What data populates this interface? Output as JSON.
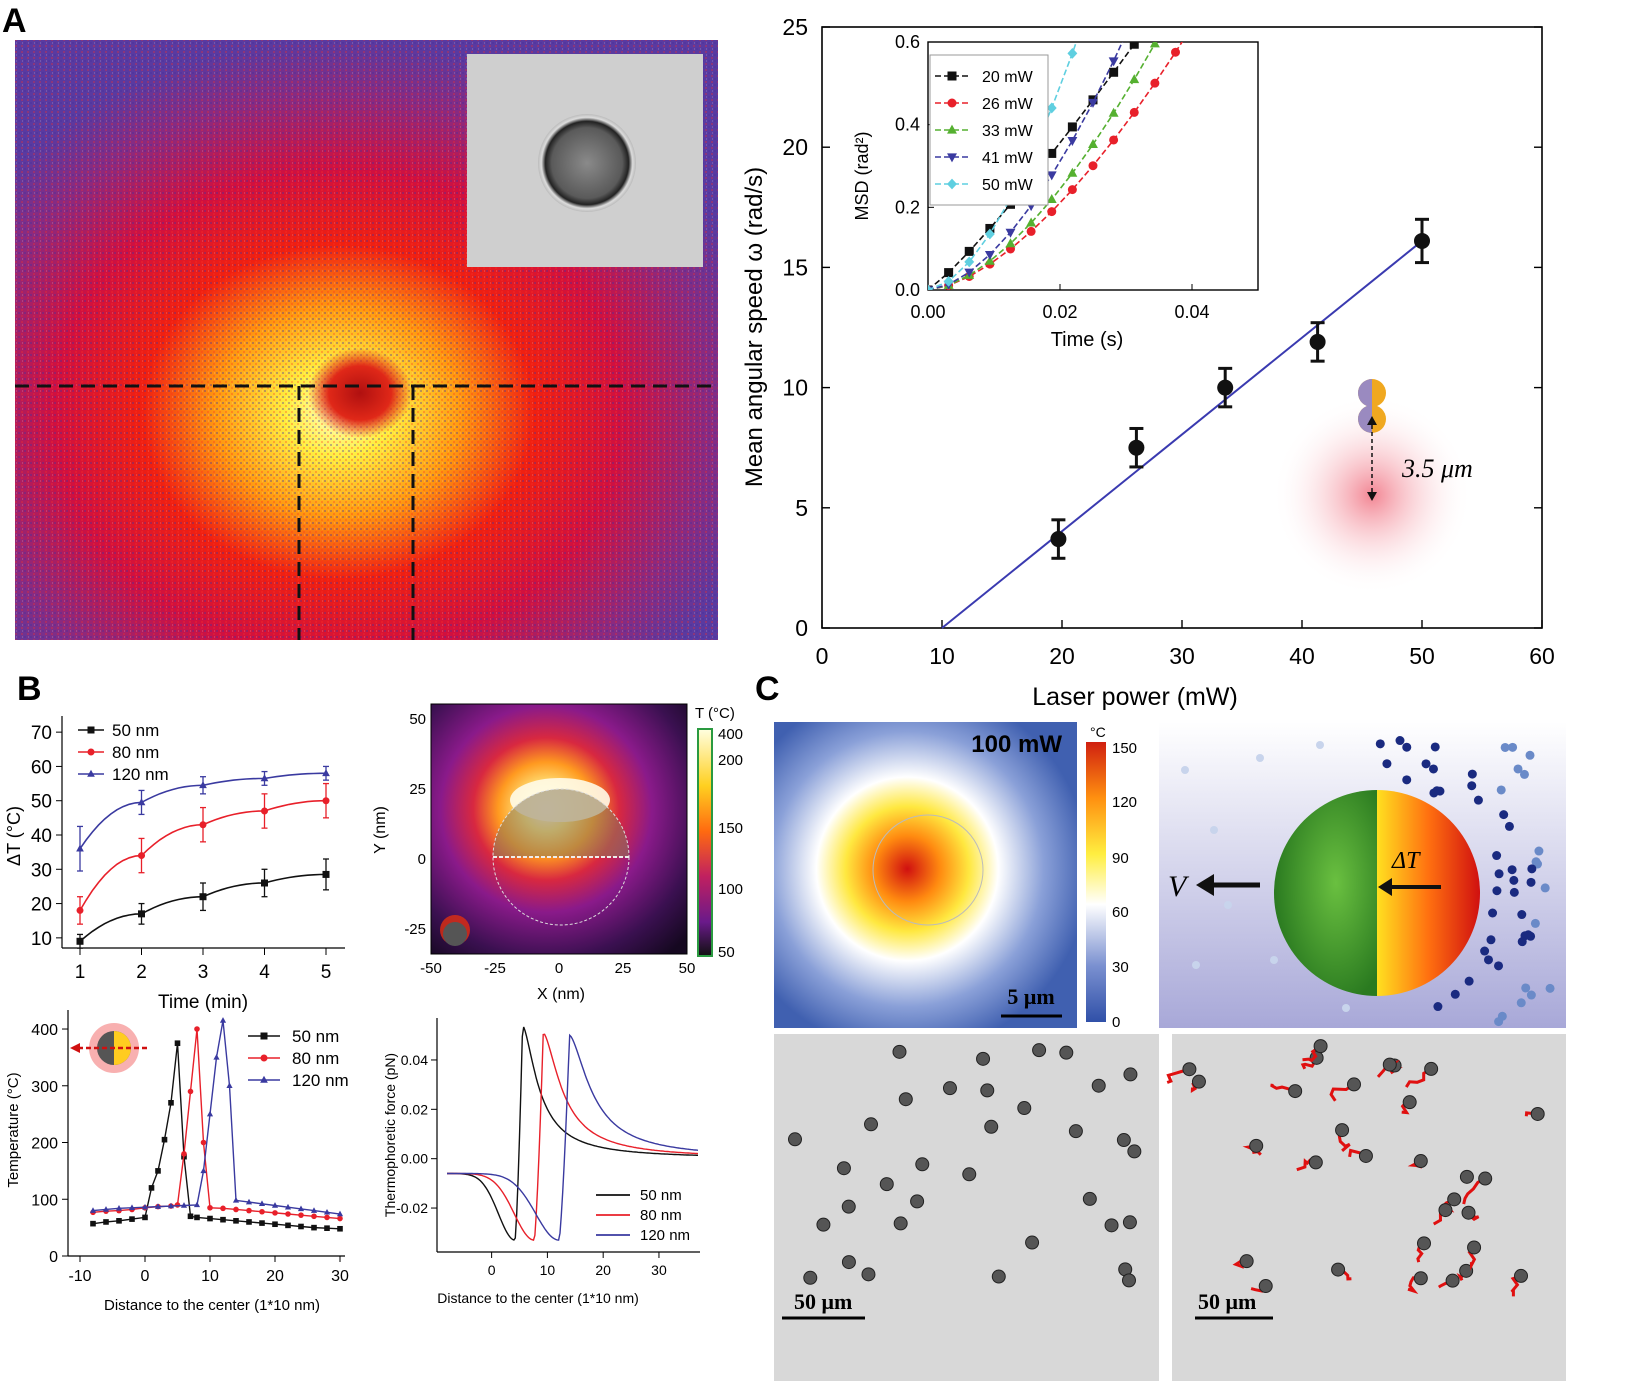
{
  "panel_labels": {
    "a": "A",
    "b": "B",
    "c": "C"
  },
  "colors": {
    "black": "#111111",
    "red": "#e8202a",
    "green": "#55b030",
    "blue": "#3a3aa0",
    "cyan": "#5fcfe0",
    "fit": "#3a3ab0"
  },
  "heat_map_a": {
    "description_tag": "thermal-image"
  },
  "chart_data": [
    {
      "id": "A-main",
      "type": "scatter",
      "xlabel": "Laser power (mW)",
      "ylabel": "Mean angular speed ω (rad/s)",
      "xlim": [
        0,
        60
      ],
      "ylim": [
        0,
        25
      ],
      "xticks": [
        0,
        10,
        20,
        30,
        40,
        50,
        60
      ],
      "yticks": [
        0,
        5,
        10,
        15,
        20,
        25
      ],
      "points": [
        {
          "x": 19.7,
          "y": 3.7,
          "err": 0.8
        },
        {
          "x": 26.2,
          "y": 7.5,
          "err": 0.8
        },
        {
          "x": 33.6,
          "y": 10.0,
          "err": 0.8
        },
        {
          "x": 41.3,
          "y": 11.9,
          "err": 0.8
        },
        {
          "x": 50.0,
          "y": 16.1,
          "err": 0.9
        }
      ],
      "fit": {
        "x": [
          10,
          50
        ],
        "y": [
          0,
          16.1
        ]
      },
      "annotation": "3.5 μm"
    },
    {
      "id": "A-inset",
      "type": "line",
      "xlabel": "Time (s)",
      "ylabel": "MSD (rad²)",
      "xlim": [
        0,
        0.05
      ],
      "ylim": [
        0,
        0.6
      ],
      "xticks": [
        "0.00",
        "0.02",
        "0.04"
      ],
      "yticks": [
        "0.0",
        "0.2",
        "0.4",
        "0.6"
      ],
      "series": [
        {
          "name": "20 mW",
          "a": 32,
          "b": 1.15
        },
        {
          "name": "26 mW",
          "a": 110,
          "b": 1.6
        },
        {
          "name": "33 mW",
          "a": 155,
          "b": 1.65
        },
        {
          "name": "41 mW",
          "a": 240,
          "b": 1.7
        },
        {
          "name": "50 mW",
          "a": 380,
          "b": 1.7
        }
      ]
    },
    {
      "id": "B-dT",
      "type": "line",
      "xlabel": "Time (min)",
      "ylabel": "ΔT (°C)",
      "xlim": [
        1,
        5
      ],
      "ylim": [
        5,
        75
      ],
      "xticks": [
        1,
        2,
        3,
        4,
        5
      ],
      "yticks": [
        10,
        20,
        30,
        40,
        50,
        60,
        70
      ],
      "x": [
        1,
        2,
        3,
        4,
        5
      ],
      "series": [
        {
          "name": "50 nm",
          "values": [
            9,
            17,
            22,
            26,
            28.5
          ],
          "err": [
            2,
            3,
            4,
            4,
            4.5
          ]
        },
        {
          "name": "80 nm",
          "values": [
            18,
            34,
            43,
            47,
            50
          ],
          "err": [
            4,
            5,
            5,
            5,
            5
          ]
        },
        {
          "name": "120 nm",
          "values": [
            36,
            49.5,
            54.5,
            56.5,
            58
          ],
          "err": [
            6.5,
            3.5,
            2.5,
            2,
            2
          ]
        }
      ]
    },
    {
      "id": "B-map",
      "type": "heatmap",
      "xlabel": "X (nm)",
      "ylabel": "Y (nm)",
      "xticks": [
        -50,
        -25,
        0,
        25,
        50
      ],
      "yticks": [
        -25,
        0,
        25,
        50
      ],
      "colorbar_title": "T (°C)",
      "colorbar_ticks": [
        "400",
        "200",
        "150",
        "100",
        "50"
      ]
    },
    {
      "id": "B-temp",
      "type": "line",
      "xlabel": "Distance to the center (1*10 nm)",
      "ylabel": "Temperature (°C)",
      "xlim": [
        -10,
        30
      ],
      "ylim": [
        0,
        430
      ],
      "xticks": [
        -10,
        0,
        10,
        20,
        30
      ],
      "yticks": [
        0,
        100,
        200,
        300,
        400
      ],
      "series": [
        {
          "name": "50 nm",
          "x": [
            -8,
            -6,
            -4,
            -2,
            0,
            1,
            2,
            3,
            4,
            5,
            6,
            7,
            8,
            10,
            12,
            14,
            16,
            18,
            20,
            22,
            24,
            26,
            28,
            30
          ],
          "values": [
            57,
            60,
            62,
            65,
            68,
            120,
            150,
            205,
            270,
            375,
            175,
            70,
            68,
            66,
            64,
            62,
            60,
            58,
            56,
            54,
            52,
            50,
            49,
            48
          ]
        },
        {
          "name": "80 nm",
          "x": [
            -8,
            -6,
            -4,
            -2,
            0,
            2,
            4,
            5,
            6,
            7,
            8,
            9,
            10,
            12,
            14,
            16,
            18,
            20,
            22,
            24,
            26,
            28,
            30
          ],
          "values": [
            77,
            79,
            80,
            82,
            85,
            87,
            88,
            90,
            180,
            290,
            400,
            200,
            85,
            84,
            82,
            80,
            78,
            76,
            74,
            72,
            70,
            68,
            66
          ]
        },
        {
          "name": "120 nm",
          "x": [
            -8,
            -6,
            -4,
            -2,
            0,
            2,
            4,
            6,
            8,
            9,
            10,
            11,
            12,
            13,
            14,
            16,
            18,
            20,
            22,
            24,
            26,
            28,
            30
          ],
          "values": [
            80,
            82,
            84,
            85,
            86,
            87,
            88,
            89,
            90,
            150,
            250,
            350,
            415,
            300,
            98,
            95,
            92,
            89,
            86,
            83,
            80,
            77,
            74
          ]
        }
      ]
    },
    {
      "id": "B-force",
      "type": "line",
      "xlabel": "Distance to the center (1*10 nm)",
      "ylabel": "Thermophoretic force (pN)",
      "xlim": [
        -8,
        37
      ],
      "ylim": [
        -0.037,
        0.057
      ],
      "xticks": [
        0,
        10,
        20,
        30
      ],
      "yticks": [
        -0.02,
        0.0,
        0.02,
        0.04
      ],
      "series": [
        {
          "name": "50 nm",
          "x0": 4.5,
          "amp": 0.054
        },
        {
          "name": "80 nm",
          "x0": 8,
          "amp": 0.051
        },
        {
          "name": "120 nm",
          "x0": 12.5,
          "amp": 0.05
        }
      ]
    },
    {
      "id": "C-map",
      "type": "heatmap",
      "label": "100 mW",
      "scalebar": "5 μm",
      "colorbar_title": "°C",
      "colorbar_ticks": [
        "150",
        "120",
        "90",
        "60",
        "30",
        "0"
      ]
    }
  ],
  "panel_c": {
    "sphere_v": "V",
    "sphere_dt": "ΔT",
    "scalebar_left": "50 μm",
    "scalebar_right": "50 μm"
  }
}
